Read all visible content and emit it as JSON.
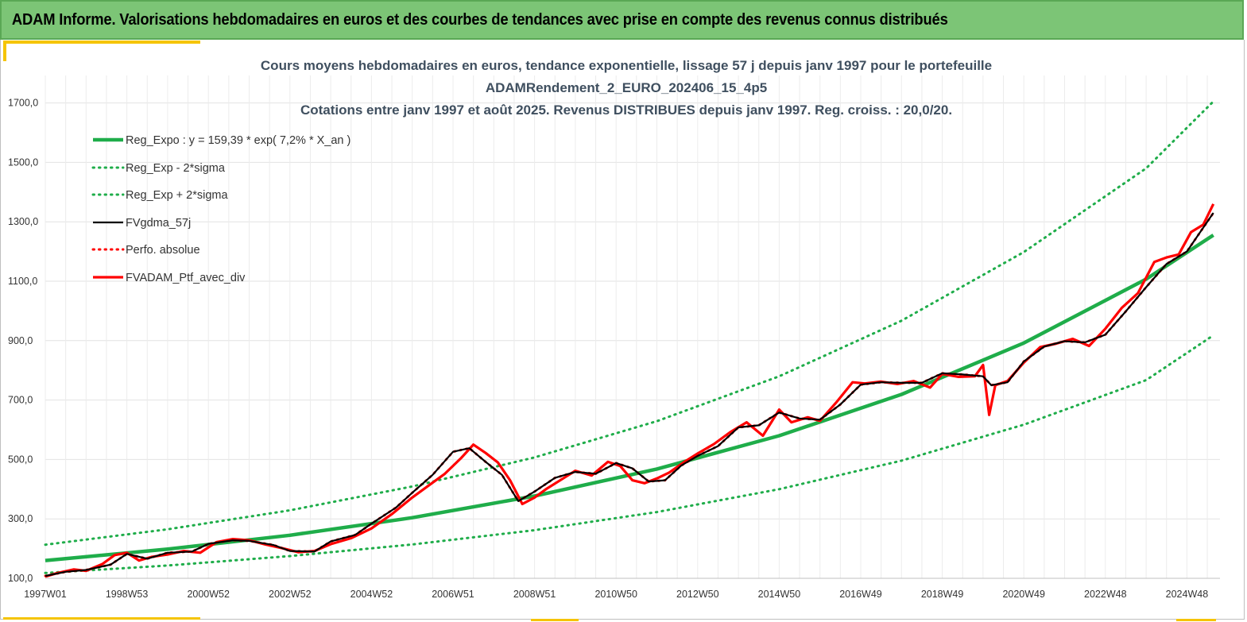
{
  "banner": {
    "title": "ADAM Informe. Valorisations hebdomadaires en euros et des courbes de tendances avec prise en compte des revenus connus distribués"
  },
  "chart_data": {
    "type": "line",
    "title_lines": [
      "Cours moyens hebdomadaires  en euros, tendance exponentielle, lissage 57 j depuis janv 1997 pour le portefeuille",
      "ADAMRendement_2_EURO_202406_15_4p5",
      "Cotations  entre janv 1997 et août 2025. Revenus DISTRIBUES depuis janv 1997. Reg. croiss. : 20,0/20."
    ],
    "xlabel": "",
    "ylabel": "",
    "x_range": [
      1997.0,
      2025.65
    ],
    "ylim": [
      100,
      1800
    ],
    "y_ticks": [
      100,
      300,
      500,
      700,
      900,
      1100,
      1300,
      1500,
      1700
    ],
    "y_tick_labels": [
      "100,0",
      "300,0",
      "500,0",
      "700,0",
      "900,0",
      "1100,0",
      "1300,0",
      "1500,0",
      "1700,0"
    ],
    "x_ticks": [
      {
        "x": 1997.0,
        "label": "1997W01"
      },
      {
        "x": 1999.0,
        "label": "1998W53"
      },
      {
        "x": 2001.0,
        "label": "2000W52"
      },
      {
        "x": 2003.0,
        "label": "2002W52"
      },
      {
        "x": 2005.0,
        "label": "2004W52"
      },
      {
        "x": 2007.0,
        "label": "2006W51"
      },
      {
        "x": 2009.0,
        "label": "2008W51"
      },
      {
        "x": 2011.0,
        "label": "2010W50"
      },
      {
        "x": 2013.0,
        "label": "2012W50"
      },
      {
        "x": 2015.0,
        "label": "2014W50"
      },
      {
        "x": 2017.0,
        "label": "2016W49"
      },
      {
        "x": 2019.0,
        "label": "2018W49"
      },
      {
        "x": 2021.0,
        "label": "2020W49"
      },
      {
        "x": 2023.0,
        "label": "2022W48"
      },
      {
        "x": 2025.0,
        "label": "2024W48"
      }
    ],
    "grid": true,
    "legend_position": "top-left",
    "series": [
      {
        "name": "Reg_Expo : y = 159,39 * exp( 7,2% *  X_an )",
        "style": "solid",
        "color": "#1fad4a",
        "x": [
          1997,
          2000,
          2003,
          2006,
          2009,
          2012,
          2015,
          2018,
          2021,
          2024,
          2025.65
        ],
        "y": [
          160,
          198,
          245,
          304,
          377,
          468,
          580,
          719,
          892,
          1107,
          1255
        ]
      },
      {
        "name": "Reg_Exp - 2*sigma",
        "style": "dotted",
        "color": "#1fad4a",
        "x": [
          1997,
          2000,
          2003,
          2006,
          2009,
          2012,
          2015,
          2018,
          2021,
          2024,
          2025.65
        ],
        "y": [
          118,
          143,
          175,
          214,
          262,
          323,
          400,
          496,
          617,
          767,
          918
        ]
      },
      {
        "name": "Reg_Exp + 2*sigma",
        "style": "dotted",
        "color": "#1fad4a",
        "x": [
          1997,
          2000,
          2003,
          2006,
          2009,
          2012,
          2015,
          2018,
          2021,
          2024,
          2025.65
        ],
        "y": [
          213,
          265,
          329,
          409,
          507,
          629,
          780,
          967,
          1198,
          1480,
          1705
        ]
      },
      {
        "name": "FVgdma_57j",
        "style": "solid-thin",
        "color": "#000000",
        "x": [
          1997,
          1997.5,
          1998,
          1998.6,
          1999,
          1999.5,
          2000,
          2000.6,
          2001,
          2001.6,
          2002,
          2002.6,
          2003,
          2003.6,
          2004,
          2004.6,
          2005,
          2005.6,
          2006,
          2006.5,
          2007,
          2007.4,
          2007.8,
          2008.2,
          2008.6,
          2009,
          2009.5,
          2010,
          2010.5,
          2011,
          2011.4,
          2011.8,
          2012.2,
          2012.6,
          2013,
          2013.5,
          2014,
          2014.5,
          2015,
          2015.5,
          2016,
          2016.5,
          2017,
          2017.5,
          2018,
          2018.5,
          2019,
          2019.5,
          2020,
          2020.2,
          2020.6,
          2021,
          2021.5,
          2022,
          2022.5,
          2023,
          2023.5,
          2024,
          2024.5,
          2025,
          2025.65
        ],
        "y": [
          108,
          122,
          128,
          146,
          182,
          166,
          186,
          190,
          216,
          228,
          226,
          212,
          192,
          190,
          224,
          246,
          284,
          338,
          388,
          448,
          526,
          538,
          492,
          448,
          360,
          392,
          438,
          458,
          452,
          488,
          470,
          426,
          430,
          480,
          512,
          545,
          608,
          615,
          658,
          638,
          634,
          685,
          752,
          760,
          758,
          758,
          790,
          786,
          780,
          750,
          760,
          830,
          880,
          898,
          894,
          920,
          998,
          1080,
          1158,
          1200,
          1330
        ]
      },
      {
        "name": "Perfo. absolue",
        "style": "dotted",
        "color": "#ff0000",
        "x": [
          1997,
          1997.5,
          1998,
          1998.6,
          1999,
          1999.5,
          2000,
          2000.6,
          2001,
          2001.6,
          2002,
          2002.6,
          2003,
          2003.6,
          2004,
          2004.6,
          2005,
          2005.6,
          2006,
          2006.5,
          2007,
          2007.4,
          2007.8,
          2008.2,
          2008.6,
          2009,
          2009.5,
          2010,
          2010.5,
          2011,
          2011.4,
          2011.8,
          2012.2,
          2012.6,
          2013,
          2013.5,
          2014,
          2014.5,
          2015,
          2015.5,
          2016,
          2016.5,
          2017,
          2017.5,
          2018,
          2018.5,
          2019,
          2019.5,
          2020,
          2020.2,
          2020.6,
          2021,
          2021.5,
          2022,
          2022.5,
          2023,
          2023.5,
          2024,
          2024.5,
          2025,
          2025.65
        ],
        "y": [
          108,
          122,
          128,
          146,
          182,
          166,
          186,
          190,
          216,
          228,
          226,
          212,
          192,
          190,
          224,
          246,
          284,
          338,
          388,
          448,
          526,
          538,
          492,
          448,
          360,
          392,
          438,
          458,
          452,
          488,
          470,
          426,
          430,
          480,
          512,
          545,
          608,
          615,
          658,
          638,
          634,
          685,
          752,
          760,
          758,
          758,
          790,
          786,
          780,
          750,
          760,
          830,
          880,
          898,
          894,
          920,
          998,
          1080,
          1158,
          1200,
          1330
        ]
      },
      {
        "name": "FVADAM_Ptf_avec_div",
        "style": "solid-thick",
        "color": "#ff0000",
        "x": [
          1997,
          1997.3,
          1997.7,
          1998,
          1998.4,
          1998.7,
          1999,
          1999.3,
          1999.6,
          2000,
          2000.4,
          2000.8,
          2001.2,
          2001.6,
          2002,
          2002.4,
          2002.8,
          2003.2,
          2003.6,
          2004,
          2004.5,
          2005,
          2005.5,
          2006,
          2006.4,
          2006.8,
          2007.2,
          2007.5,
          2007.8,
          2008.1,
          2008.4,
          2008.7,
          2009,
          2009.3,
          2009.7,
          2010,
          2010.4,
          2010.8,
          2011.1,
          2011.4,
          2011.7,
          2012,
          2012.3,
          2012.7,
          2013,
          2013.4,
          2013.8,
          2014.2,
          2014.6,
          2015,
          2015.3,
          2015.7,
          2016,
          2016.4,
          2016.8,
          2017.1,
          2017.5,
          2017.9,
          2018.3,
          2018.7,
          2019,
          2019.4,
          2019.8,
          2020.0,
          2020.15,
          2020.3,
          2020.6,
          2021,
          2021.4,
          2021.8,
          2022.2,
          2022.6,
          2023,
          2023.4,
          2023.8,
          2024.2,
          2024.5,
          2024.8,
          2025.1,
          2025.4,
          2025.65
        ],
        "y": [
          106,
          118,
          130,
          125,
          148,
          178,
          186,
          160,
          172,
          180,
          192,
          186,
          222,
          232,
          228,
          214,
          202,
          188,
          192,
          215,
          235,
          268,
          316,
          372,
          412,
          452,
          505,
          550,
          522,
          490,
          430,
          350,
          372,
          402,
          436,
          462,
          446,
          492,
          478,
          430,
          420,
          436,
          456,
          494,
          520,
          552,
          592,
          625,
          580,
          668,
          625,
          642,
          630,
          692,
          760,
          756,
          762,
          754,
          764,
          742,
          788,
          778,
          780,
          818,
          650,
          750,
          764,
          826,
          878,
          890,
          906,
          882,
          940,
          1010,
          1060,
          1165,
          1180,
          1190,
          1265,
          1290,
          1360
        ]
      }
    ]
  }
}
